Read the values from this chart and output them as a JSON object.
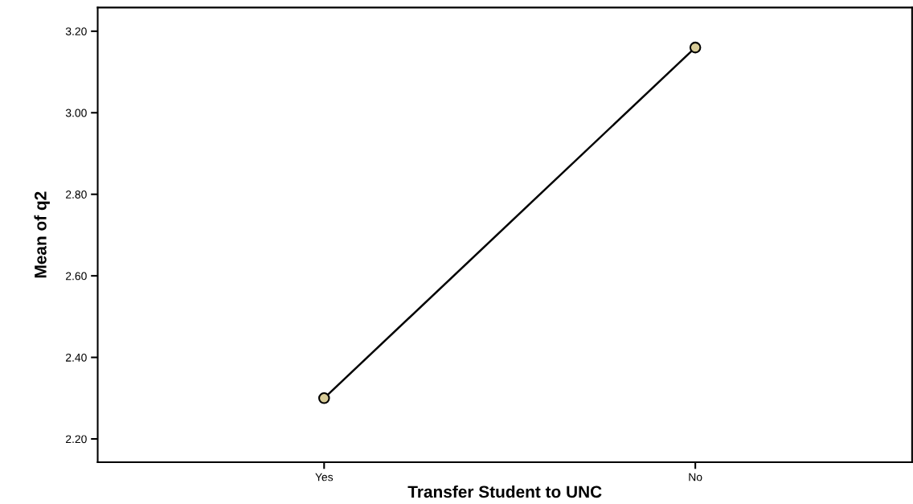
{
  "chart_data": {
    "type": "line",
    "xlabel": "Transfer Student to UNC",
    "ylabel": "Mean of q2",
    "categories": [
      "Yes",
      "No"
    ],
    "series": [
      {
        "color": "#000000",
        "values": [
          2.3,
          3.16
        ]
      }
    ],
    "marker": "circle",
    "ylim": [
      2.143,
      3.258
    ],
    "yticks": [
      {
        "value": 2.2,
        "label": "2.20"
      },
      {
        "value": 2.4,
        "label": "2.40"
      },
      {
        "value": 2.6,
        "label": "2.60"
      },
      {
        "value": 2.8,
        "label": "2.80"
      },
      {
        "value": 3.0,
        "label": "3.00"
      },
      {
        "value": 3.2,
        "label": "3.20"
      }
    ],
    "grid": false
  }
}
